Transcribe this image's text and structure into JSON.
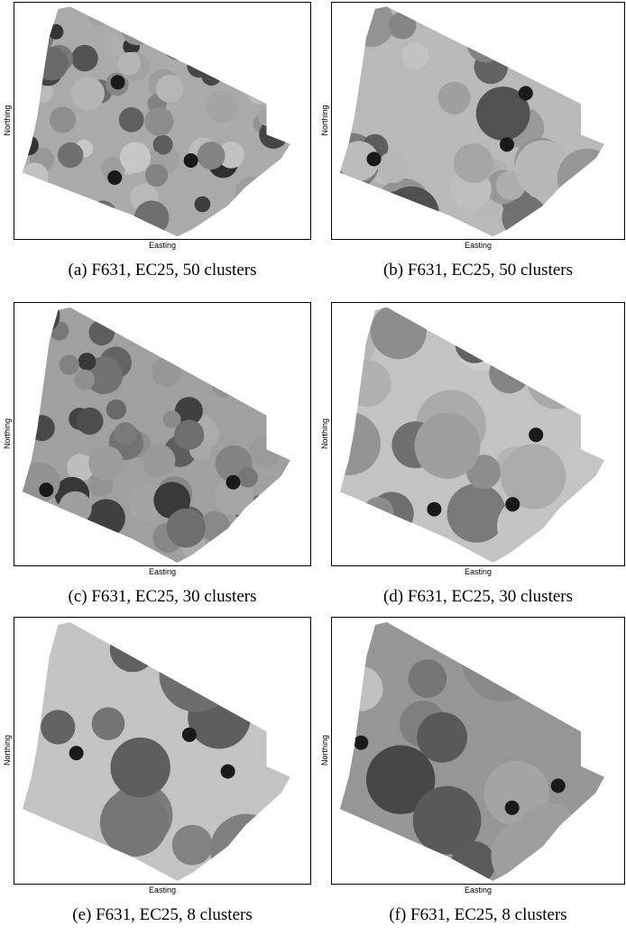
{
  "figure": {
    "panels": [
      {
        "caption": "(a) F631, EC25, 50 clusters",
        "x_label": "Easting",
        "y_label": "Northing"
      },
      {
        "caption": "(b) F631, EC25, 50 clusters",
        "x_label": "Easting",
        "y_label": "Northing"
      },
      {
        "caption": "(c) F631, EC25, 30 clusters",
        "x_label": "Easting",
        "y_label": "Northing"
      },
      {
        "caption": "(d) F631, EC25, 30 clusters",
        "x_label": "Easting",
        "y_label": "Northing"
      },
      {
        "caption": "(e) F631, EC25, 8 clusters",
        "x_label": "Easting",
        "y_label": "Northing"
      },
      {
        "caption": "(f) F631, EC25, 8 clusters",
        "x_label": "Easting",
        "y_label": "Northing"
      }
    ]
  }
}
